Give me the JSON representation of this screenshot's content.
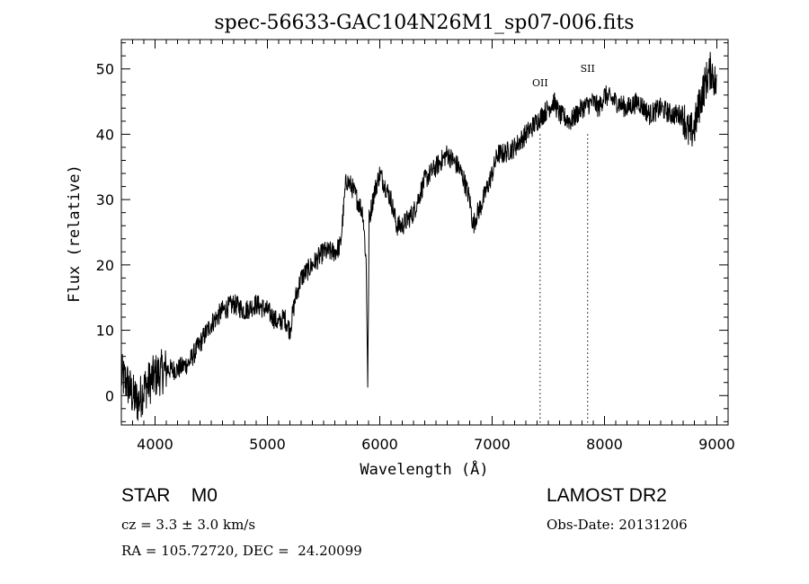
{
  "chart_data": {
    "type": "line",
    "title": "spec-56633-GAC104N26M1_sp07-006.fits",
    "xlabel": "Wavelength (Å)",
    "ylabel": "Flux (relative)",
    "xlim": [
      3700,
      9100
    ],
    "ylim": [
      -4.5,
      54.5
    ],
    "xticks": [
      4000,
      5000,
      6000,
      7000,
      8000,
      9000
    ],
    "yticks": [
      0,
      10,
      20,
      30,
      40,
      50
    ],
    "grid": false,
    "series": [
      {
        "x": [
          3700,
          3750,
          3800,
          3850,
          3900,
          4000,
          4100,
          4200,
          4300,
          4400,
          4500,
          4600,
          4700,
          4800,
          4900,
          5000,
          5100,
          5150,
          5200,
          5250,
          5300,
          5400,
          5500,
          5600,
          5650,
          5700,
          5750,
          5800,
          5850,
          5880,
          5893,
          5905,
          5950,
          6000,
          6050,
          6100,
          6150,
          6200,
          6300,
          6400,
          6500,
          6600,
          6700,
          6750,
          6800,
          6830,
          6870,
          6900,
          7000,
          7050,
          7100,
          7200,
          7300,
          7400,
          7450,
          7500,
          7550,
          7600,
          7700,
          7800,
          7900,
          7950,
          8000,
          8100,
          8200,
          8300,
          8400,
          8500,
          8600,
          8700,
          8750,
          8800,
          8850,
          8900,
          8950,
          9000
        ],
        "y": [
          3,
          2,
          0,
          -1,
          1,
          3,
          4,
          4,
          5,
          8,
          11,
          13,
          14,
          13,
          14,
          13,
          11,
          12,
          10,
          15,
          18,
          20,
          22,
          22,
          23,
          33,
          32,
          30,
          28,
          20,
          1,
          27,
          31,
          34,
          32,
          30,
          26,
          26,
          28,
          33,
          35,
          37,
          35,
          33,
          30,
          26,
          28,
          29,
          34,
          37,
          37,
          38,
          40,
          42,
          43,
          44,
          45,
          43,
          42,
          44,
          45,
          44,
          46,
          45,
          44,
          45,
          43,
          44,
          43,
          43,
          40,
          41,
          45,
          48,
          50,
          47
        ]
      }
    ],
    "annotations": [
      {
        "label": "OII",
        "x": 7427,
        "line_style": "dotted"
      },
      {
        "label": "SII",
        "x": 7850,
        "line_style": "dotted"
      }
    ]
  },
  "info": {
    "object": "STAR    M0",
    "velocity": "cz = 3.3 ± 3.0 km/s",
    "coordinates": "RA = 105.72720, DEC =  24.20099",
    "survey": "LAMOST DR2",
    "obs_date": "Obs-Date: 20131206"
  }
}
